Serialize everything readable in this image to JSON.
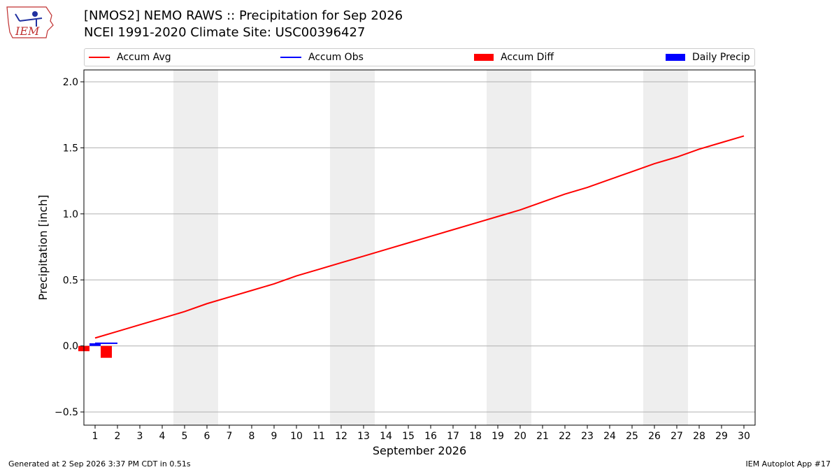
{
  "header": {
    "title_line1": "[NMOS2] NEMO RAWS :: Precipitation for Sep 2026",
    "title_line2": "NCEI 1991-2020 Climate Site: USC00396427",
    "logo_text": "IEM"
  },
  "footer": {
    "generated": "Generated at 2 Sep 2026 3:37 PM CDT in 0.51s",
    "app": "IEM Autoplot App #17"
  },
  "chart_data": {
    "type": "line",
    "xlabel": "September 2026",
    "ylabel": "Precipitation [inch]",
    "xlim": [
      0.5,
      30.5
    ],
    "ylim": [
      -0.6,
      2.09
    ],
    "x_ticks": [
      1,
      2,
      3,
      4,
      5,
      6,
      7,
      8,
      9,
      10,
      11,
      12,
      13,
      14,
      15,
      16,
      17,
      18,
      19,
      20,
      21,
      22,
      23,
      24,
      25,
      26,
      27,
      28,
      29,
      30
    ],
    "y_ticks": [
      -0.5,
      0.0,
      0.5,
      1.0,
      1.5,
      2.0
    ],
    "y_tick_labels": [
      "−0.5",
      "0.0",
      "0.5",
      "1.0",
      "1.5",
      "2.0"
    ],
    "grid": true,
    "legend_position": "top, above plot",
    "weekend_bands": [
      [
        4.5,
        6.5
      ],
      [
        11.5,
        13.5
      ],
      [
        18.5,
        20.5
      ],
      [
        25.5,
        27.5
      ]
    ],
    "legend": [
      {
        "label": "Accum Avg",
        "kind": "line",
        "color": "#ff0000"
      },
      {
        "label": "Accum Obs",
        "kind": "line",
        "color": "#0000ff"
      },
      {
        "label": "Accum Diff",
        "kind": "bar",
        "color": "#ff0000"
      },
      {
        "label": "Daily Precip",
        "kind": "bar",
        "color": "#0000ff"
      }
    ],
    "series": [
      {
        "name": "Accum Avg",
        "color": "#ff0000",
        "x": [
          1,
          2,
          3,
          4,
          5,
          6,
          7,
          8,
          9,
          10,
          11,
          12,
          13,
          14,
          15,
          16,
          17,
          18,
          19,
          20,
          21,
          22,
          23,
          24,
          25,
          26,
          27,
          28,
          29,
          30
        ],
        "values": [
          0.06,
          0.11,
          0.16,
          0.21,
          0.26,
          0.32,
          0.37,
          0.42,
          0.47,
          0.53,
          0.58,
          0.63,
          0.68,
          0.73,
          0.78,
          0.83,
          0.88,
          0.93,
          0.98,
          1.03,
          1.09,
          1.15,
          1.2,
          1.26,
          1.32,
          1.38,
          1.43,
          1.49,
          1.54,
          1.59
        ]
      },
      {
        "name": "Accum Obs",
        "color": "#0000ff",
        "x": [
          1,
          2
        ],
        "values": [
          0.02,
          0.02
        ]
      },
      {
        "name": "Accum Diff",
        "color": "#ff0000",
        "x": [
          1,
          2
        ],
        "values": [
          -0.04,
          -0.09
        ]
      },
      {
        "name": "Daily Precip",
        "color": "#0000ff",
        "x": [
          1,
          2
        ],
        "values": [
          0.02,
          0.0
        ]
      }
    ]
  }
}
